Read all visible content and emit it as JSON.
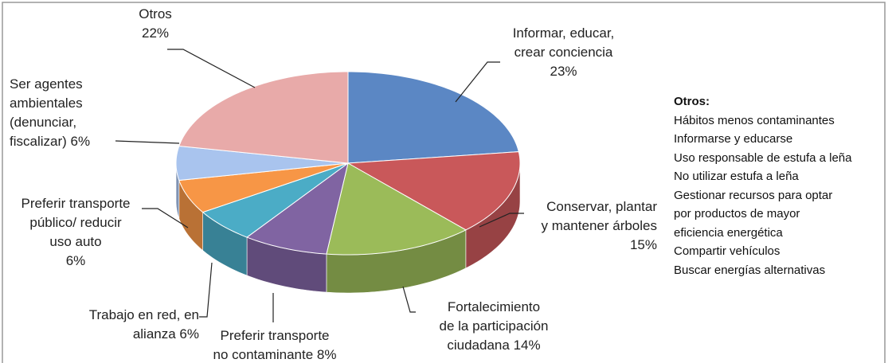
{
  "chart_data": {
    "type": "pie3d",
    "categories": [
      "Informar, educar,\ncrear conciencia",
      "Conservar, plantar\ny mantener árboles",
      "Fortalecimiento\nde la participación\nciudadana",
      "Preferir transporte\nno contaminante",
      "Trabajo en red, en\nalianza",
      "Preferir transporte\npúblico/ reducir\nuso auto",
      "Ser agentes\nambientales\n(denunciar,\nfiscalizar)",
      "Otros"
    ],
    "values": [
      23,
      15,
      14,
      8,
      6,
      6,
      6,
      22
    ],
    "value_labels": [
      "23%",
      "15%",
      "14%",
      "8%",
      "6%",
      "6%",
      "6%",
      "22%"
    ],
    "colors": [
      "#5b87c4",
      "#c9585a",
      "#9bbb59",
      "#8064a2",
      "#4bacc6",
      "#f79646",
      "#a9c4ee",
      "#e8aaa9"
    ]
  },
  "notes": {
    "title": "Otros:",
    "items": [
      "Hábitos menos contaminantes",
      "Informarse y educarse",
      "Uso responsable de estufa a leña",
      "No utilizar estufa a leña",
      "Gestionar recursos para optar",
      "por productos de mayor",
      "eficiencia energética",
      "Compartir vehículos",
      "Buscar energías alternativas"
    ]
  }
}
